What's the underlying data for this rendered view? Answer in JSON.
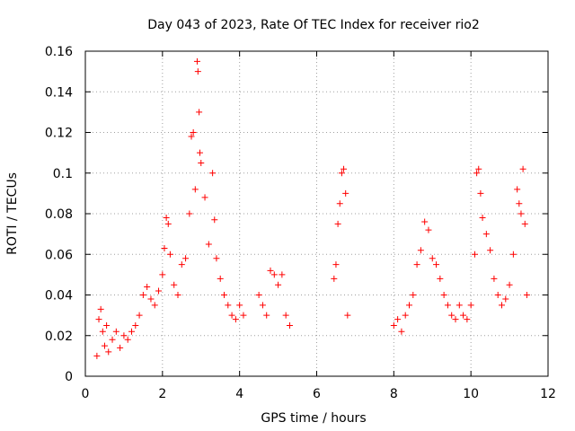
{
  "chart_data": {
    "type": "scatter",
    "title": "Day 043 of 2023, Rate Of TEC Index for receiver rio2",
    "xlabel": "GPS time / hours",
    "ylabel": "ROTI / TECUs",
    "xlim": [
      0,
      12
    ],
    "ylim": [
      0,
      0.16
    ],
    "x_ticks": [
      0,
      2,
      4,
      6,
      8,
      10,
      12
    ],
    "y_ticks": [
      0,
      0.02,
      0.04,
      0.06,
      0.08,
      0.1,
      0.12,
      0.14,
      0.16
    ],
    "x_tick_labels": [
      "0",
      "2",
      "4",
      "6",
      "8",
      "10",
      "12"
    ],
    "y_tick_labels": [
      "0",
      "0.02",
      "0.04",
      "0.06",
      "0.08",
      "0.1",
      "0.12",
      "0.14",
      "0.16"
    ],
    "grid": true,
    "marker": "+",
    "marker_color": "#ff0000",
    "series": [
      {
        "points": [
          [
            0.3,
            0.01
          ],
          [
            0.35,
            0.028
          ],
          [
            0.4,
            0.033
          ],
          [
            0.45,
            0.022
          ],
          [
            0.5,
            0.015
          ],
          [
            0.55,
            0.025
          ],
          [
            0.6,
            0.012
          ],
          [
            0.7,
            0.018
          ],
          [
            0.8,
            0.022
          ],
          [
            0.9,
            0.014
          ],
          [
            1.0,
            0.02
          ],
          [
            1.1,
            0.018
          ],
          [
            1.2,
            0.022
          ],
          [
            1.3,
            0.025
          ],
          [
            1.4,
            0.03
          ],
          [
            1.5,
            0.04
          ],
          [
            1.6,
            0.044
          ],
          [
            1.7,
            0.038
          ],
          [
            1.8,
            0.035
          ],
          [
            1.9,
            0.042
          ],
          [
            2.0,
            0.05
          ],
          [
            2.05,
            0.063
          ],
          [
            2.1,
            0.078
          ],
          [
            2.15,
            0.075
          ],
          [
            2.2,
            0.06
          ],
          [
            2.3,
            0.045
          ],
          [
            2.4,
            0.04
          ],
          [
            2.5,
            0.055
          ],
          [
            2.6,
            0.058
          ],
          [
            2.7,
            0.08
          ],
          [
            2.75,
            0.118
          ],
          [
            2.8,
            0.12
          ],
          [
            2.85,
            0.092
          ],
          [
            2.9,
            0.155
          ],
          [
            2.92,
            0.15
          ],
          [
            2.95,
            0.13
          ],
          [
            2.97,
            0.11
          ],
          [
            3.0,
            0.105
          ],
          [
            3.1,
            0.088
          ],
          [
            3.2,
            0.065
          ],
          [
            3.3,
            0.1
          ],
          [
            3.35,
            0.077
          ],
          [
            3.4,
            0.058
          ],
          [
            3.5,
            0.048
          ],
          [
            3.6,
            0.04
          ],
          [
            3.7,
            0.035
          ],
          [
            3.8,
            0.03
          ],
          [
            3.9,
            0.028
          ],
          [
            4.0,
            0.035
          ],
          [
            4.1,
            0.03
          ],
          [
            4.5,
            0.04
          ],
          [
            4.6,
            0.035
          ],
          [
            4.7,
            0.03
          ],
          [
            4.8,
            0.052
          ],
          [
            4.9,
            0.05
          ],
          [
            5.0,
            0.045
          ],
          [
            5.1,
            0.05
          ],
          [
            5.2,
            0.03
          ],
          [
            5.3,
            0.025
          ],
          [
            6.45,
            0.048
          ],
          [
            6.5,
            0.055
          ],
          [
            6.55,
            0.075
          ],
          [
            6.6,
            0.085
          ],
          [
            6.65,
            0.1
          ],
          [
            6.7,
            0.102
          ],
          [
            6.75,
            0.09
          ],
          [
            6.8,
            0.03
          ],
          [
            8.0,
            0.025
          ],
          [
            8.1,
            0.028
          ],
          [
            8.2,
            0.022
          ],
          [
            8.3,
            0.03
          ],
          [
            8.4,
            0.035
          ],
          [
            8.5,
            0.04
          ],
          [
            8.6,
            0.055
          ],
          [
            8.7,
            0.062
          ],
          [
            8.8,
            0.076
          ],
          [
            8.9,
            0.072
          ],
          [
            9.0,
            0.058
          ],
          [
            9.1,
            0.055
          ],
          [
            9.2,
            0.048
          ],
          [
            9.3,
            0.04
          ],
          [
            9.4,
            0.035
          ],
          [
            9.5,
            0.03
          ],
          [
            9.6,
            0.028
          ],
          [
            9.7,
            0.035
          ],
          [
            9.8,
            0.03
          ],
          [
            9.9,
            0.028
          ],
          [
            10.0,
            0.035
          ],
          [
            10.1,
            0.06
          ],
          [
            10.15,
            0.1
          ],
          [
            10.2,
            0.102
          ],
          [
            10.25,
            0.09
          ],
          [
            10.3,
            0.078
          ],
          [
            10.4,
            0.07
          ],
          [
            10.5,
            0.062
          ],
          [
            10.6,
            0.048
          ],
          [
            10.7,
            0.04
          ],
          [
            10.8,
            0.035
          ],
          [
            10.9,
            0.038
          ],
          [
            11.0,
            0.045
          ],
          [
            11.1,
            0.06
          ],
          [
            11.2,
            0.092
          ],
          [
            11.25,
            0.085
          ],
          [
            11.3,
            0.08
          ],
          [
            11.35,
            0.102
          ],
          [
            11.4,
            0.075
          ],
          [
            11.45,
            0.04
          ]
        ]
      }
    ]
  }
}
